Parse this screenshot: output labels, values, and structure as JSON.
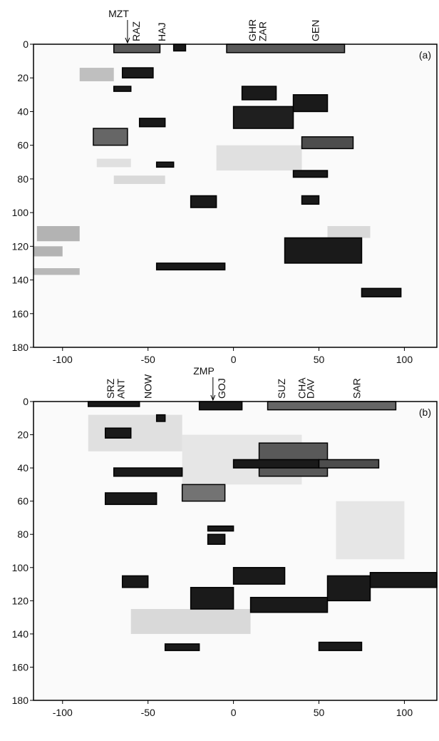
{
  "chart_data": [
    {
      "type": "image",
      "panel_label": "(a)",
      "xlim": [
        -117,
        119
      ],
      "ylim": [
        180,
        0
      ],
      "xticks": [
        -100,
        -50,
        0,
        50,
        100
      ],
      "yticks": [
        0,
        20,
        40,
        60,
        80,
        100,
        120,
        140,
        160,
        180
      ],
      "stations": [
        {
          "label": "MZT",
          "x": -62,
          "arrow": true
        },
        {
          "label": "RAZ",
          "x": -57,
          "arrow": false
        },
        {
          "label": "HAJ",
          "x": -42,
          "arrow": false
        },
        {
          "label": "GHR",
          "x": 11,
          "arrow": false
        },
        {
          "label": "ZAR",
          "x": 17,
          "arrow": false
        },
        {
          "label": "GEN",
          "x": 48,
          "arrow": false
        }
      ],
      "blocks": [
        {
          "x": [
            -90,
            -70
          ],
          "y": [
            14,
            22
          ],
          "shade": 0.75
        },
        {
          "x": [
            -115,
            -90
          ],
          "y": [
            108,
            117
          ],
          "shade": 0.7
        },
        {
          "x": [
            -117,
            -100
          ],
          "y": [
            120,
            126
          ],
          "shade": 0.7
        },
        {
          "x": [
            -117,
            -90
          ],
          "y": [
            133,
            137
          ],
          "shade": 0.72
        },
        {
          "x": [
            -80,
            -60
          ],
          "y": [
            68,
            73
          ],
          "shade": 0.88
        },
        {
          "x": [
            -70,
            -40
          ],
          "y": [
            78,
            83
          ],
          "shade": 0.85
        },
        {
          "x": [
            -10,
            40
          ],
          "y": [
            60,
            75
          ],
          "shade": 0.88
        },
        {
          "x": [
            55,
            80
          ],
          "y": [
            108,
            115
          ],
          "shade": 0.85
        },
        {
          "x": [
            -70,
            -43
          ],
          "y": [
            0,
            5
          ],
          "shade": 0.35
        },
        {
          "x": [
            -35,
            -28
          ],
          "y": [
            0,
            4
          ],
          "shade": 0.1
        },
        {
          "x": [
            -4,
            65
          ],
          "y": [
            0,
            5
          ],
          "shade": 0.35
        },
        {
          "x": [
            -65,
            -47
          ],
          "y": [
            14,
            20
          ],
          "shade": 0.1
        },
        {
          "x": [
            -70,
            -60
          ],
          "y": [
            25,
            28
          ],
          "shade": 0.1
        },
        {
          "x": [
            -82,
            -62
          ],
          "y": [
            50,
            60
          ],
          "shade": 0.4
        },
        {
          "x": [
            -55,
            -40
          ],
          "y": [
            44,
            49
          ],
          "shade": 0.1
        },
        {
          "x": [
            -45,
            -35
          ],
          "y": [
            70,
            73
          ],
          "shade": 0.1
        },
        {
          "x": [
            -25,
            -10
          ],
          "y": [
            90,
            97
          ],
          "shade": 0.1
        },
        {
          "x": [
            -45,
            -5
          ],
          "y": [
            130,
            134
          ],
          "shade": 0.1
        },
        {
          "x": [
            5,
            25
          ],
          "y": [
            25,
            33
          ],
          "shade": 0.1
        },
        {
          "x": [
            0,
            35
          ],
          "y": [
            37,
            50
          ],
          "shade": 0.12
        },
        {
          "x": [
            35,
            55
          ],
          "y": [
            30,
            40
          ],
          "shade": 0.1
        },
        {
          "x": [
            40,
            70
          ],
          "y": [
            55,
            62
          ],
          "shade": 0.3
        },
        {
          "x": [
            35,
            55
          ],
          "y": [
            75,
            79
          ],
          "shade": 0.1
        },
        {
          "x": [
            40,
            50
          ],
          "y": [
            90,
            95
          ],
          "shade": 0.1
        },
        {
          "x": [
            30,
            75
          ],
          "y": [
            115,
            130
          ],
          "shade": 0.1
        },
        {
          "x": [
            75,
            98
          ],
          "y": [
            145,
            150
          ],
          "shade": 0.1
        }
      ]
    },
    {
      "type": "image",
      "panel_label": "(b)",
      "xlim": [
        -117,
        119
      ],
      "ylim": [
        180,
        0
      ],
      "xticks": [
        -100,
        -50,
        0,
        50,
        100
      ],
      "yticks": [
        0,
        20,
        40,
        60,
        80,
        100,
        120,
        140,
        160,
        180
      ],
      "stations": [
        {
          "label": "SRZ",
          "x": -72,
          "arrow": false
        },
        {
          "label": "ANT",
          "x": -66,
          "arrow": false
        },
        {
          "label": "NOW",
          "x": -50,
          "arrow": false
        },
        {
          "label": "ZMP",
          "x": -12,
          "arrow": true
        },
        {
          "label": "GOJ",
          "x": -7,
          "arrow": false
        },
        {
          "label": "SUZ",
          "x": 28,
          "arrow": false
        },
        {
          "label": "CHA",
          "x": 40,
          "arrow": false
        },
        {
          "label": "DAV",
          "x": 45,
          "arrow": false
        },
        {
          "label": "SAR",
          "x": 72,
          "arrow": false
        }
      ],
      "blocks": [
        {
          "x": [
            -85,
            -30
          ],
          "y": [
            8,
            30
          ],
          "shade": 0.88
        },
        {
          "x": [
            -30,
            40
          ],
          "y": [
            20,
            50
          ],
          "shade": 0.9
        },
        {
          "x": [
            -60,
            10
          ],
          "y": [
            125,
            140
          ],
          "shade": 0.85
        },
        {
          "x": [
            60,
            100
          ],
          "y": [
            60,
            95
          ],
          "shade": 0.9
        },
        {
          "x": [
            -85,
            -55
          ],
          "y": [
            0,
            3
          ],
          "shade": 0.1
        },
        {
          "x": [
            -20,
            5
          ],
          "y": [
            0,
            5
          ],
          "shade": 0.1
        },
        {
          "x": [
            20,
            95
          ],
          "y": [
            0,
            5
          ],
          "shade": 0.4
        },
        {
          "x": [
            -75,
            -60
          ],
          "y": [
            16,
            22
          ],
          "shade": 0.1
        },
        {
          "x": [
            -45,
            -40
          ],
          "y": [
            8,
            12
          ],
          "shade": 0.1
        },
        {
          "x": [
            15,
            55
          ],
          "y": [
            25,
            45
          ],
          "shade": 0.35
        },
        {
          "x": [
            0,
            50
          ],
          "y": [
            35,
            40
          ],
          "shade": 0.1
        },
        {
          "x": [
            50,
            85
          ],
          "y": [
            35,
            40
          ],
          "shade": 0.3
        },
        {
          "x": [
            -70,
            -30
          ],
          "y": [
            40,
            45
          ],
          "shade": 0.1
        },
        {
          "x": [
            -75,
            -45
          ],
          "y": [
            55,
            62
          ],
          "shade": 0.1
        },
        {
          "x": [
            -30,
            -5
          ],
          "y": [
            50,
            60
          ],
          "shade": 0.45
        },
        {
          "x": [
            -15,
            0
          ],
          "y": [
            75,
            78
          ],
          "shade": 0.1
        },
        {
          "x": [
            -15,
            -5
          ],
          "y": [
            80,
            86
          ],
          "shade": 0.1
        },
        {
          "x": [
            -65,
            -50
          ],
          "y": [
            105,
            112
          ],
          "shade": 0.1
        },
        {
          "x": [
            0,
            30
          ],
          "y": [
            100,
            110
          ],
          "shade": 0.1
        },
        {
          "x": [
            -25,
            0
          ],
          "y": [
            112,
            125
          ],
          "shade": 0.1
        },
        {
          "x": [
            10,
            55
          ],
          "y": [
            118,
            127
          ],
          "shade": 0.1
        },
        {
          "x": [
            55,
            80
          ],
          "y": [
            105,
            120
          ],
          "shade": 0.1
        },
        {
          "x": [
            80,
            119
          ],
          "y": [
            103,
            112
          ],
          "shade": 0.1
        },
        {
          "x": [
            50,
            75
          ],
          "y": [
            145,
            150
          ],
          "shade": 0.1
        },
        {
          "x": [
            -40,
            -20
          ],
          "y": [
            146,
            150
          ],
          "shade": 0.1
        }
      ]
    }
  ]
}
